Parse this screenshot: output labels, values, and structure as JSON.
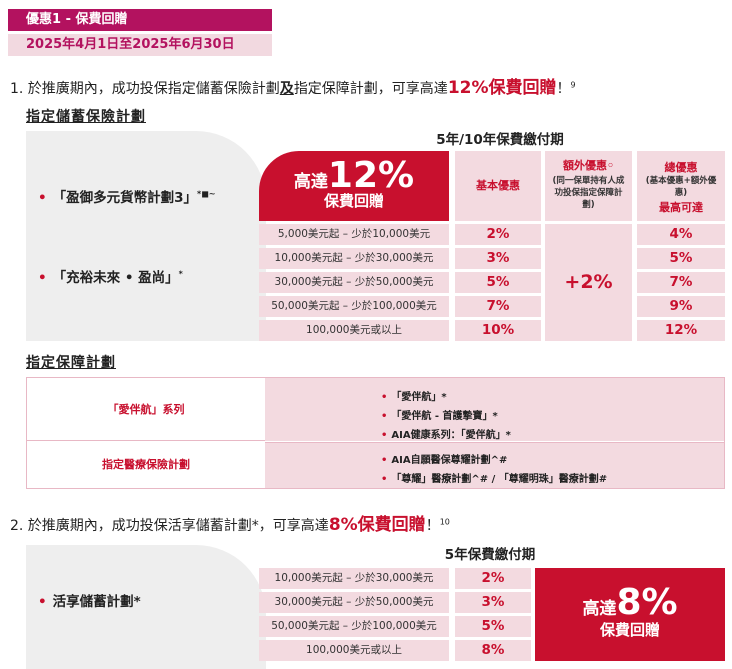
{
  "header": {
    "offer_title": "優惠1 - 保費回贈",
    "date_range": "2025年4月1日至2025年6月30日"
  },
  "item1": {
    "prefix": "1. 於推廣期內，成功投保指定儲蓄保險計劃",
    "and": "及",
    "middle": "指定保障計劃，可享高達",
    "highlight": "12%保費回贈",
    "suffix": "！",
    "sup": "9"
  },
  "savings": {
    "heading": "指定儲蓄保險計劃",
    "period_header": "5年/10年保費繳付期",
    "plans": [
      {
        "name": "「盈御多元貨幣計劃3」",
        "mark": "*■~"
      },
      {
        "name": "「充裕未來 • 盈尚」",
        "mark": "*"
      }
    ],
    "promo": {
      "pre": "高達",
      "pct": "12%",
      "sub": "保費回贈"
    },
    "col_basic": "基本優惠",
    "col_extra_title": "額外優惠◦",
    "col_extra_note": "(同一保單持有人成功投保指定保障計劃)",
    "col_total_title": "總優惠",
    "col_total_note": "(基本優惠+額外優惠)",
    "col_total_sub": "最高可達",
    "rows": [
      {
        "range": "5,000美元起 – 少於10,000美元",
        "basic": "2%",
        "total": "4%"
      },
      {
        "range": "10,000美元起 – 少於30,000美元",
        "basic": "3%",
        "total": "5%"
      },
      {
        "range": "30,000美元起 – 少於50,000美元",
        "basic": "5%",
        "total": "7%"
      },
      {
        "range": "50,000美元起 – 少於100,000美元",
        "basic": "7%",
        "total": "9%"
      },
      {
        "range": "100,000美元或以上",
        "basic": "10%",
        "total": "12%"
      }
    ],
    "extra_value": "+2%"
  },
  "protection": {
    "heading": "指定保障計劃",
    "groups": [
      {
        "label": "「愛伴航」系列",
        "items": [
          "「愛伴航」*",
          "「愛伴航 - 首護摯寶」*",
          "AIA健康系列：「愛伴航」*"
        ]
      },
      {
        "label": "指定醫療保險計劃",
        "items": [
          "AIA自願醫保尊耀計劃^#",
          "「尊耀」醫療計劃^# / 「尊耀明珠」醫療計劃#"
        ]
      }
    ]
  },
  "item2": {
    "prefix": "2. 於推廣期內，成功投保活享儲蓄計劃*，可享高達",
    "highlight": "8%保費回贈",
    "suffix": "！",
    "sup": "10"
  },
  "live": {
    "period_header": "5年保費繳付期",
    "plan": "活享儲蓄計劃*",
    "rows": [
      {
        "range": "10,000美元起 – 少於30,000美元",
        "value": "2%"
      },
      {
        "range": "30,000美元起 – 少於50,000美元",
        "value": "3%"
      },
      {
        "range": "50,000美元起 – 少於100,000美元",
        "value": "5%"
      },
      {
        "range": "100,000美元或以上",
        "value": "8%"
      }
    ],
    "promo": {
      "pre": "高達",
      "pct": "8%",
      "sub": "保費回贈"
    }
  },
  "colors": {
    "accent": "#c8102e",
    "header_bg": "#b3125f",
    "pink_bg": "#f3dae0",
    "grey_bg": "#eeeeee"
  }
}
